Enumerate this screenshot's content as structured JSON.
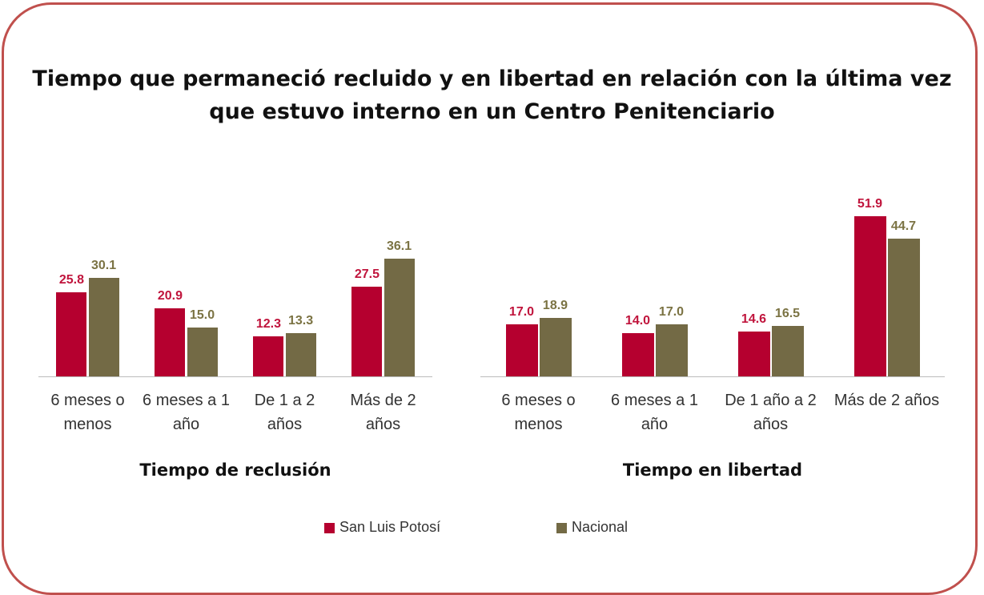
{
  "title": "Tiempo que permaneció recluido y en libertad en relación con la última vez que estuvo interno en un Centro Penitenciario",
  "chart_data": [
    {
      "type": "bar",
      "x_label": "Tiempo de reclusión",
      "categories": [
        "6 meses o menos",
        "6 meses a 1 año",
        "De 1 a 2 años",
        "Más de 2 años"
      ],
      "series": [
        {
          "name": "San Luis Potosí",
          "color": "#b5002f",
          "label_color": "#c0143c",
          "values": [
            25.8,
            20.9,
            12.3,
            27.5
          ],
          "value_labels": [
            "25.8",
            "20.9",
            "12.3",
            "27.5"
          ]
        },
        {
          "name": "Nacional",
          "color": "#736a45",
          "label_color": "#7b7343",
          "values": [
            30.1,
            15.0,
            13.3,
            36.1
          ],
          "value_labels": [
            "30.1",
            "15.0",
            "13.3",
            "36.1"
          ]
        }
      ],
      "ylim": [
        0,
        49
      ]
    },
    {
      "type": "bar",
      "x_label": "Tiempo en libertad",
      "categories": [
        "6 meses o menos",
        "6 meses a 1 año",
        "De 1 año a 2 años",
        "Más de 2 años"
      ],
      "series": [
        {
          "name": "San Luis Potosí",
          "color": "#b5002f",
          "label_color": "#c0143c",
          "values": [
            17.0,
            14.0,
            14.6,
            51.9
          ],
          "value_labels": [
            "17.0",
            "14.0",
            "14.6",
            "51.9"
          ]
        },
        {
          "name": "Nacional",
          "color": "#736a45",
          "label_color": "#7b7343",
          "values": [
            18.9,
            17.0,
            16.5,
            44.7
          ],
          "value_labels": [
            "18.9",
            "17.0",
            "16.5",
            "44.7"
          ]
        }
      ],
      "ylim": [
        0,
        52
      ]
    }
  ]
}
